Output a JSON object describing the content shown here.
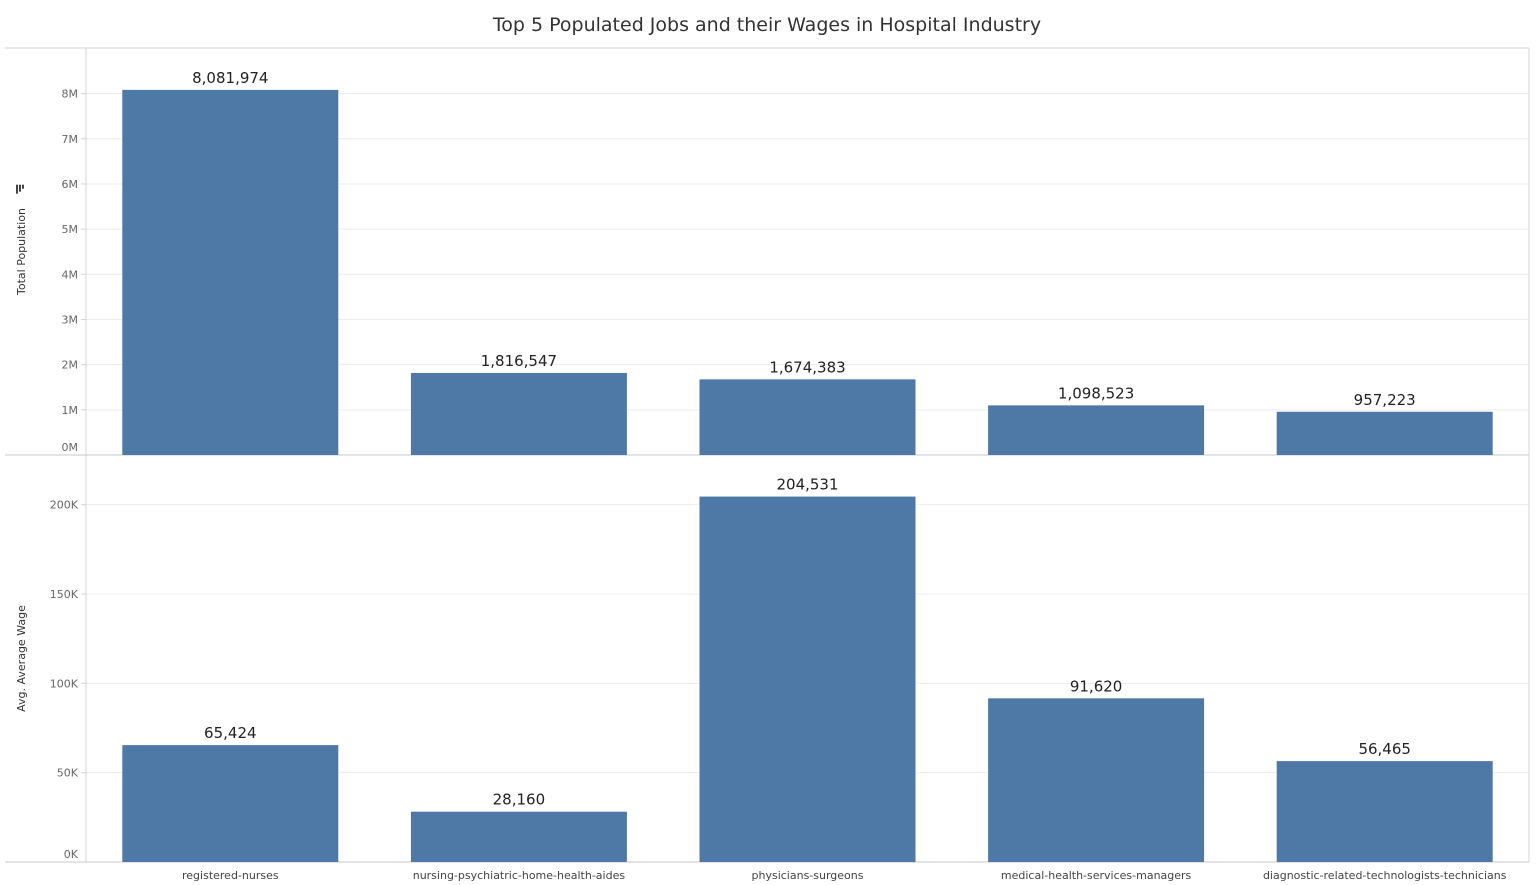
{
  "chart_data": {
    "type": "bar",
    "title": "Top 5 Populated Jobs and their Wages in Hospital Industry",
    "bar_color": "#4e79a7",
    "categories": [
      "registered-nurses",
      "nursing-psychiatric-home-health-aides",
      "physicians-surgeons",
      "medical-health-services-managers",
      "diagnostic-related-technologists-technicians"
    ],
    "panels": [
      {
        "ylabel": "Total Population",
        "sort_icon": "sort-descending-icon",
        "ylim": [
          0,
          8500000
        ],
        "ticks": [
          {
            "value": 0,
            "label": "0M"
          },
          {
            "value": 1000000,
            "label": "1M"
          },
          {
            "value": 2000000,
            "label": "2M"
          },
          {
            "value": 3000000,
            "label": "3M"
          },
          {
            "value": 4000000,
            "label": "4M"
          },
          {
            "value": 5000000,
            "label": "5M"
          },
          {
            "value": 6000000,
            "label": "6M"
          },
          {
            "value": 7000000,
            "label": "7M"
          },
          {
            "value": 8000000,
            "label": "8M"
          }
        ],
        "values": [
          8081974,
          1816547,
          1674383,
          1098523,
          957223
        ],
        "value_labels": [
          "8,081,974",
          "1,816,547",
          "1,674,383",
          "1,098,523",
          "957,223"
        ]
      },
      {
        "ylabel": "Avg. Average Wage",
        "ylim": [
          0,
          225000
        ],
        "ticks": [
          {
            "value": 0,
            "label": "0K"
          },
          {
            "value": 50000,
            "label": "50K"
          },
          {
            "value": 100000,
            "label": "100K"
          },
          {
            "value": 150000,
            "label": "150K"
          },
          {
            "value": 200000,
            "label": "200K"
          }
        ],
        "values": [
          65424,
          28160,
          204531,
          91620,
          56465
        ],
        "value_labels": [
          "65,424",
          "28,160",
          "204,531",
          "91,620",
          "56,465"
        ]
      }
    ]
  }
}
